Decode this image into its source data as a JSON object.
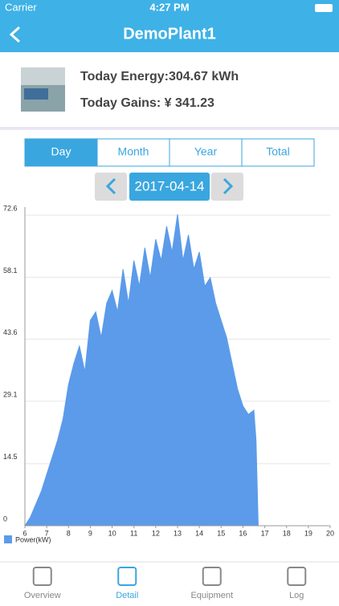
{
  "status_bar": {
    "carrier": "Carrier",
    "time": "4:27 PM"
  },
  "header": {
    "title": "DemoPlant1"
  },
  "summary": {
    "energy": "Today Energy:304.67 kWh",
    "gains": "Today Gains: ¥ 341.23"
  },
  "tabs": [
    "Day",
    "Month",
    "Year",
    "Total"
  ],
  "date": "2017-04-14",
  "chart_data": {
    "type": "area",
    "x": [
      6,
      6.25,
      6.5,
      6.75,
      7,
      7.25,
      7.5,
      7.75,
      8,
      8.25,
      8.5,
      8.75,
      9,
      9.25,
      9.5,
      9.75,
      10,
      10.25,
      10.5,
      10.75,
      11,
      11.25,
      11.5,
      11.75,
      12,
      12.25,
      12.5,
      12.75,
      13,
      13.25,
      13.5,
      13.75,
      14,
      14.25,
      14.5,
      14.75,
      15,
      15.25,
      15.5,
      15.75,
      16,
      16.25,
      16.5,
      16.6,
      16.7,
      20
    ],
    "series": [
      {
        "name": "Power(kW)",
        "color": "#5b9bea",
        "values": [
          0,
          2,
          5,
          8,
          12,
          16,
          20,
          25,
          33,
          38,
          42,
          36,
          48,
          50,
          44,
          52,
          55,
          50,
          60,
          52,
          62,
          56,
          65,
          58,
          67,
          62,
          70,
          64,
          72.8,
          62,
          68,
          60,
          64,
          56,
          58,
          52,
          48,
          44,
          38,
          32,
          28,
          26,
          27,
          20,
          0,
          0
        ]
      }
    ],
    "xlim": [
      6,
      20
    ],
    "xticks": [
      6,
      7,
      8,
      9,
      10,
      11,
      12,
      13,
      14,
      15,
      16,
      17,
      18,
      19,
      20
    ],
    "ylim": [
      0,
      74.5
    ],
    "yticks": [
      0,
      14.5,
      29.1,
      43.6,
      58.1,
      72.6
    ],
    "grid": true
  },
  "nav": [
    "Overview",
    "Detail",
    "Equipment",
    "Log"
  ]
}
